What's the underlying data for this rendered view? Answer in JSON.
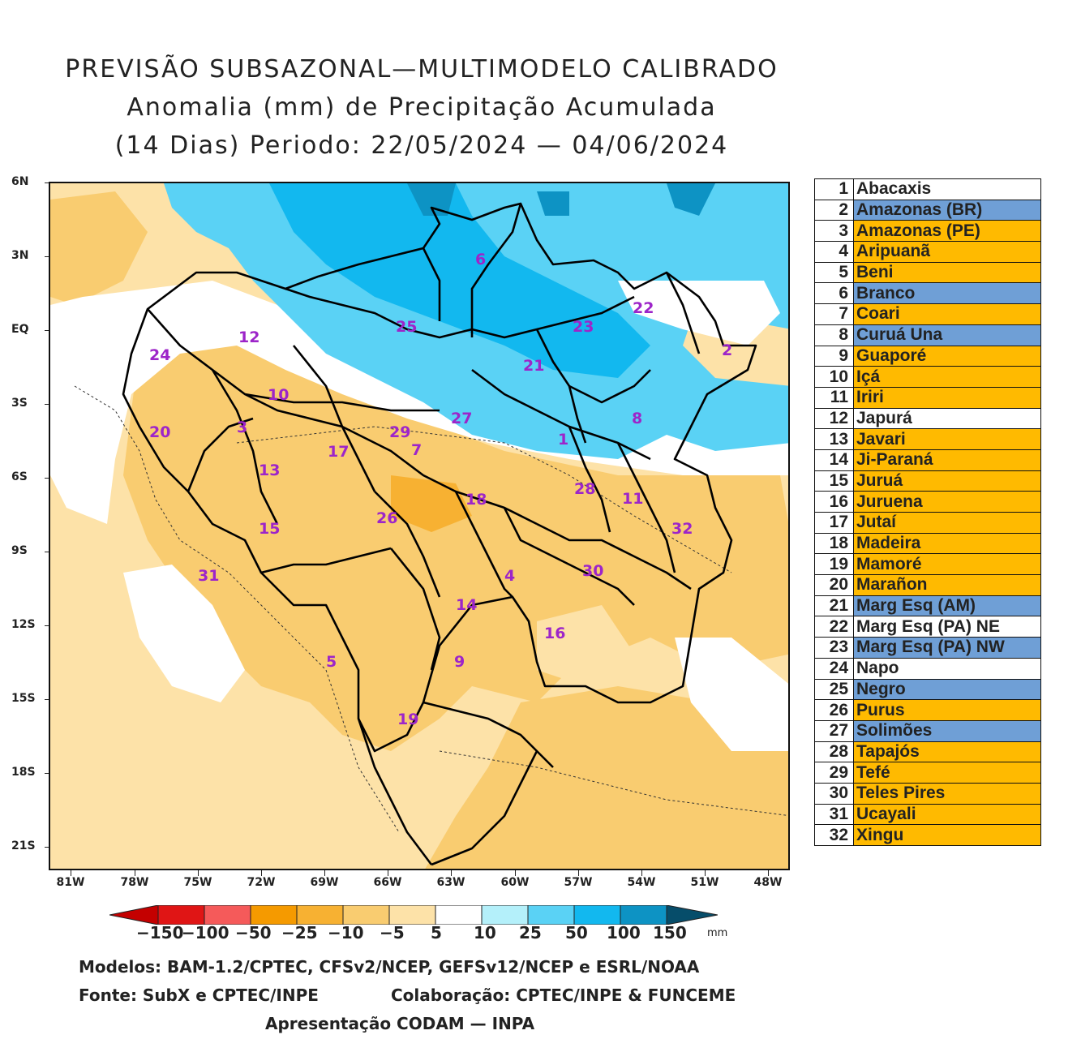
{
  "title": {
    "line1": "PREVISÃO SUBSAZONAL—MULTIMODELO CALIBRADO",
    "line2": "Anomalia (mm) de Precipitação Acumulada",
    "line3": "(14 Dias) Periodo: 22/05/2024 — 04/06/2024"
  },
  "axes": {
    "lat_labels": [
      "6N",
      "3N",
      "EQ",
      "3S",
      "6S",
      "9S",
      "12S",
      "15S",
      "18S",
      "21S"
    ],
    "lon_labels": [
      "81W",
      "78W",
      "75W",
      "72W",
      "69W",
      "66W",
      "63W",
      "60W",
      "57W",
      "54W",
      "51W",
      "48W"
    ]
  },
  "colorbar": {
    "labels": [
      "−150",
      "−100",
      "−50",
      "−25",
      "−10",
      "−5",
      "5",
      "10",
      "25",
      "50",
      "100",
      "150"
    ],
    "unit": "mm",
    "colors": [
      "#c40000",
      "#e01515",
      "#f55a5a",
      "#f59a00",
      "#f7b132",
      "#f9cc70",
      "#fde2a8",
      "#ffffff",
      "#b4f0fa",
      "#5ad2f5",
      "#12b8ef",
      "#0d93c4",
      "#096d93",
      "#064d6a"
    ]
  },
  "map": {
    "basin_labels": [
      {
        "id": "1",
        "color": "#9d25c9"
      },
      {
        "id": "2"
      },
      {
        "id": "3"
      },
      {
        "id": "4"
      },
      {
        "id": "5"
      },
      {
        "id": "6"
      },
      {
        "id": "7"
      },
      {
        "id": "8"
      },
      {
        "id": "9"
      },
      {
        "id": "10"
      },
      {
        "id": "11"
      },
      {
        "id": "12"
      },
      {
        "id": "13"
      },
      {
        "id": "14"
      },
      {
        "id": "15"
      },
      {
        "id": "16"
      },
      {
        "id": "17"
      },
      {
        "id": "18"
      },
      {
        "id": "19"
      },
      {
        "id": "20"
      },
      {
        "id": "21"
      },
      {
        "id": "22"
      },
      {
        "id": "23"
      },
      {
        "id": "24"
      },
      {
        "id": "25"
      },
      {
        "id": "26"
      },
      {
        "id": "27"
      },
      {
        "id": "28"
      },
      {
        "id": "29"
      },
      {
        "id": "30"
      },
      {
        "id": "31"
      },
      {
        "id": "32"
      }
    ]
  },
  "basins": [
    {
      "n": "1",
      "name": "Abacaxis",
      "color": "#ffffff"
    },
    {
      "n": "2",
      "name": "Amazonas (BR)",
      "color": "#6f9fd6"
    },
    {
      "n": "3",
      "name": "Amazonas (PE)",
      "color": "#ffba00"
    },
    {
      "n": "4",
      "name": "Aripuanã",
      "color": "#ffba00"
    },
    {
      "n": "5",
      "name": "Beni",
      "color": "#ffba00"
    },
    {
      "n": "6",
      "name": "Branco",
      "color": "#6f9fd6"
    },
    {
      "n": "7",
      "name": "Coari",
      "color": "#ffba00"
    },
    {
      "n": "8",
      "name": "Curuá Una",
      "color": "#6f9fd6"
    },
    {
      "n": "9",
      "name": "Guaporé",
      "color": "#ffba00"
    },
    {
      "n": "10",
      "name": "Içá",
      "color": "#ffba00"
    },
    {
      "n": "11",
      "name": "Iriri",
      "color": "#ffba00"
    },
    {
      "n": "12",
      "name": "Japurá",
      "color": "#ffffff"
    },
    {
      "n": "13",
      "name": "Javari",
      "color": "#ffba00"
    },
    {
      "n": "14",
      "name": "Ji-Paraná",
      "color": "#ffba00"
    },
    {
      "n": "15",
      "name": "Juruá",
      "color": "#ffba00"
    },
    {
      "n": "16",
      "name": "Juruena",
      "color": "#ffba00"
    },
    {
      "n": "17",
      "name": "Jutaí",
      "color": "#ffba00"
    },
    {
      "n": "18",
      "name": "Madeira",
      "color": "#ffba00"
    },
    {
      "n": "19",
      "name": "Mamoré",
      "color": "#ffba00"
    },
    {
      "n": "20",
      "name": "Marañon",
      "color": "#ffba00"
    },
    {
      "n": "21",
      "name": "Marg Esq (AM)",
      "color": "#6f9fd6"
    },
    {
      "n": "22",
      "name": "Marg Esq (PA) NE",
      "color": "#ffffff"
    },
    {
      "n": "23",
      "name": "Marg Esq (PA) NW",
      "color": "#6f9fd6"
    },
    {
      "n": "24",
      "name": "Napo",
      "color": "#ffffff"
    },
    {
      "n": "25",
      "name": "Negro",
      "color": "#6f9fd6"
    },
    {
      "n": "26",
      "name": "Purus",
      "color": "#ffba00"
    },
    {
      "n": "27",
      "name": "Solimões",
      "color": "#6f9fd6"
    },
    {
      "n": "28",
      "name": "Tapajós",
      "color": "#ffba00"
    },
    {
      "n": "29",
      "name": "Tefé",
      "color": "#ffba00"
    },
    {
      "n": "30",
      "name": "Teles Pires",
      "color": "#ffba00"
    },
    {
      "n": "31",
      "name": "Ucayali",
      "color": "#ffba00"
    },
    {
      "n": "32",
      "name": "Xingu",
      "color": "#ffba00"
    }
  ],
  "footer": {
    "models": "Modelos: BAM-1.2/CPTEC, CFSv2/NCEP, GEFSv12/NCEP e ESRL/NOAA",
    "source": "Fonte: SubX e CPTEC/INPE",
    "collab": "Colaboração: CPTEC/INPE & FUNCEME",
    "presentation": "Apresentação CODAM — INPA"
  }
}
